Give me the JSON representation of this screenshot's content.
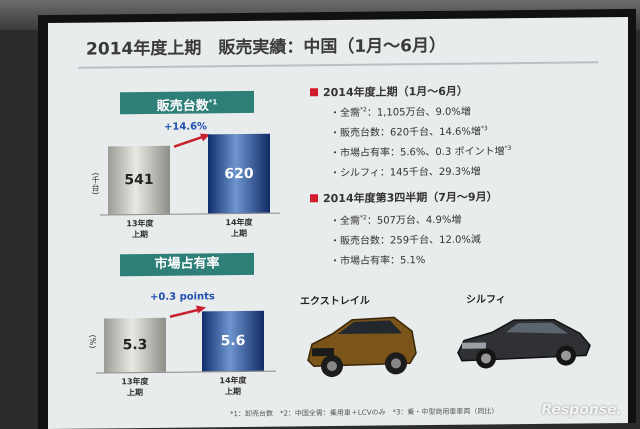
{
  "slide": {
    "title": "2014年度上期　販売実績：中国（1月～6月）"
  },
  "left": {
    "sales": {
      "label": "販売台数",
      "label_note": "*1",
      "unit": "(千台)",
      "growth": "+14.6%",
      "chart_data": {
        "type": "bar",
        "categories": [
          "13年度上期",
          "14年度上期"
        ],
        "values": [
          541,
          620
        ]
      },
      "bars": [
        {
          "value": "541",
          "label_line1": "13年度",
          "label_line2": "上期",
          "style": "gray"
        },
        {
          "value": "620",
          "label_line1": "14年度",
          "label_line2": "上期",
          "style": "blue"
        }
      ]
    },
    "share": {
      "label": "市場占有率",
      "unit": "(%)",
      "growth": "+0.3 points",
      "chart_data": {
        "type": "bar",
        "categories": [
          "13年度上期",
          "14年度上期"
        ],
        "values": [
          5.3,
          5.6
        ]
      },
      "bars": [
        {
          "value": "5.3",
          "label_line1": "13年度",
          "label_line2": "上期",
          "style": "gray"
        },
        {
          "value": "5.6",
          "label_line1": "14年度",
          "label_line2": "上期",
          "style": "blue"
        }
      ]
    }
  },
  "right": {
    "section1": {
      "heading": "2014年度上期（1月～6月）",
      "items": [
        {
          "label": "全需",
          "note": "*2",
          "text": "：1,105万台、9.0%増"
        },
        {
          "label": "販売台数",
          "note": "",
          "text": "：620千台、14.6%増",
          "suffix_note": "*3"
        },
        {
          "label": "市場占有率",
          "note": "",
          "text": "：5.6%、0.3 ポイント増",
          "suffix_note": "*3"
        },
        {
          "label": "シルフィ",
          "note": "",
          "text": "：145千台、29.3%増"
        }
      ]
    },
    "section2": {
      "heading": "2014年度第3四半期（7月～9月）",
      "items": [
        {
          "label": "全需",
          "note": "*2",
          "text": "：507万台、4.9%増"
        },
        {
          "label": "販売台数",
          "note": "",
          "text": "：259千台、12.0%減"
        },
        {
          "label": "市場占有率",
          "note": "",
          "text": "：5.1%"
        }
      ]
    },
    "cars": [
      {
        "name": "エクストレイル",
        "color": "#7a5418"
      },
      {
        "name": "シルフィ",
        "color": "#2f3134"
      }
    ]
  },
  "footnote": "*1：卸売台数　*2：中国全需：乗用車＋LCVのみ　*3：乗・中型商用車車両（同比）",
  "watermark": "Response."
}
